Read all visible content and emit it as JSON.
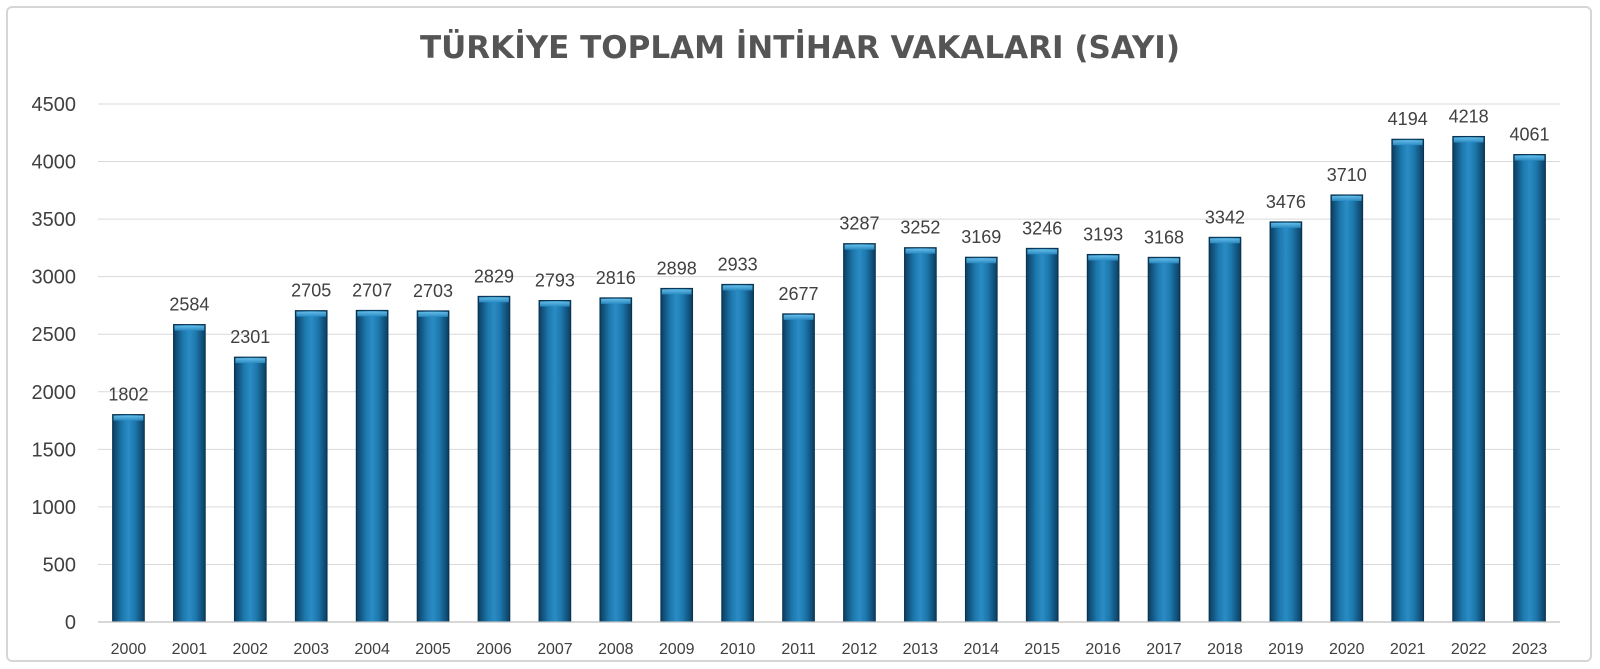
{
  "chart_data": {
    "type": "bar",
    "title": "TÜRKİYE TOPLAM İNTİHAR VAKALARI (SAYI)",
    "xlabel": "",
    "ylabel": "",
    "categories": [
      "2000",
      "2001",
      "2002",
      "2003",
      "2004",
      "2005",
      "2006",
      "2007",
      "2008",
      "2009",
      "2010",
      "2011",
      "2012",
      "2013",
      "2014",
      "2015",
      "2016",
      "2017",
      "2018",
      "2019",
      "2020",
      "2021",
      "2022",
      "2023"
    ],
    "values": [
      1802,
      2584,
      2301,
      2705,
      2707,
      2703,
      2829,
      2793,
      2816,
      2898,
      2933,
      2677,
      3287,
      3252,
      3169,
      3246,
      3193,
      3168,
      3342,
      3476,
      3710,
      4194,
      4218,
      4061
    ],
    "ylim": [
      0,
      4500
    ],
    "yticks": [
      0,
      500,
      1000,
      1500,
      2000,
      2500,
      3000,
      3500,
      4000,
      4500
    ],
    "grid": true,
    "data_labels": true,
    "legend": "none",
    "colors": {
      "bar_dark": "#0a3a5c",
      "bar_mid": "#1a6fa3",
      "bar_light": "#3aa0d6",
      "title": "#555555"
    }
  }
}
